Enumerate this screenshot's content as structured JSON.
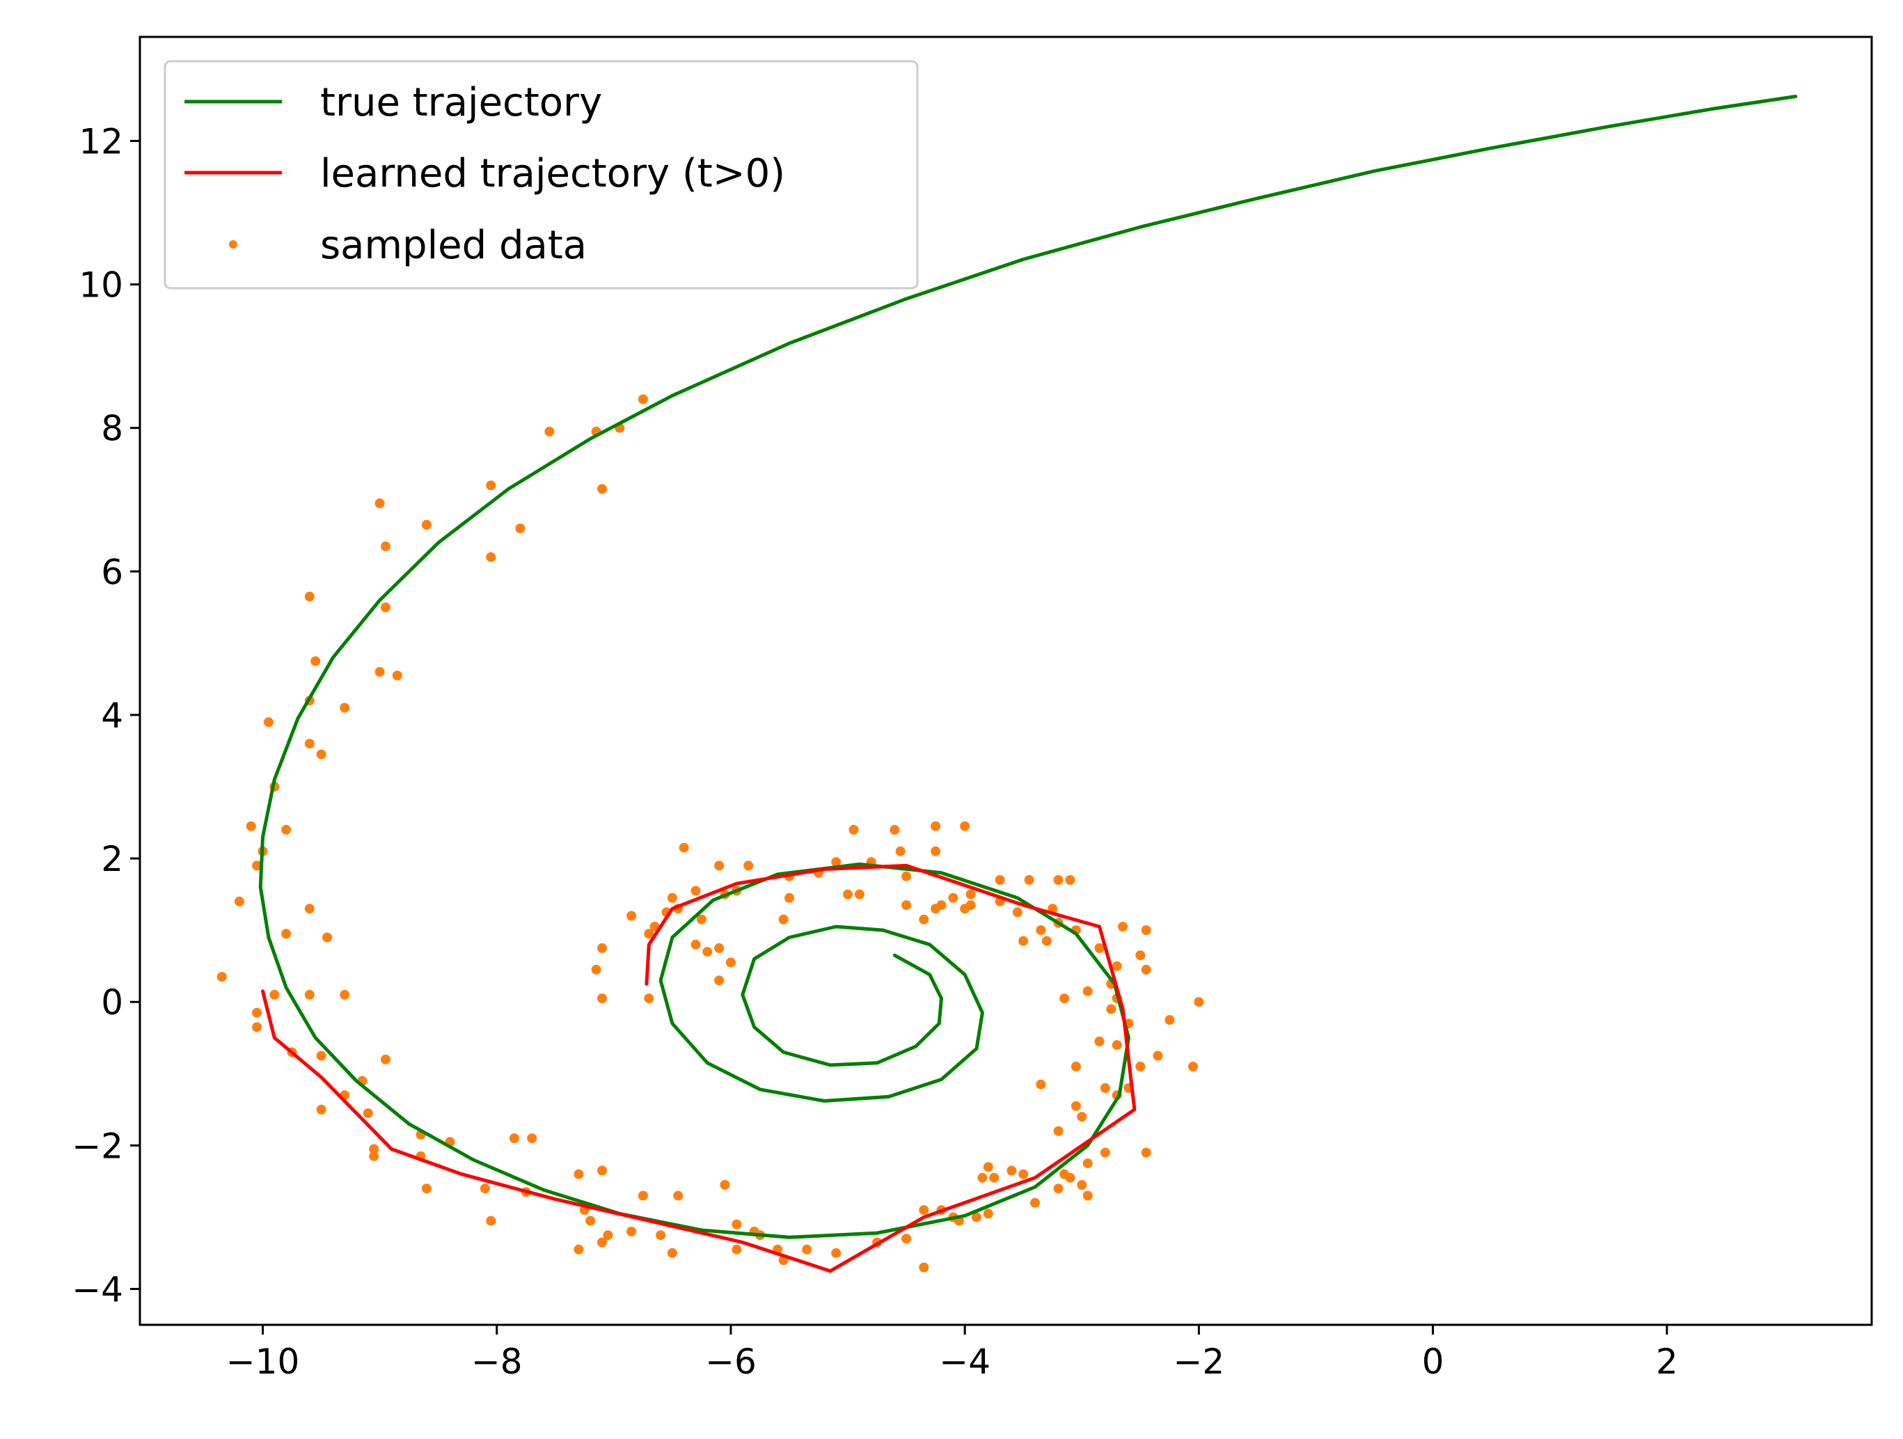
{
  "chart_data": {
    "type": "line",
    "title": "",
    "xlabel": "",
    "ylabel": "",
    "xlim": [
      -11.05,
      3.75
    ],
    "ylim": [
      -4.5,
      13.45
    ],
    "xticks": [
      -10,
      -8,
      -6,
      -4,
      -2,
      0,
      2
    ],
    "yticks": [
      -4,
      -2,
      0,
      2,
      4,
      6,
      8,
      10,
      12
    ],
    "xtick_labels": [
      "−10",
      "−8",
      "−6",
      "−4",
      "−2",
      "0",
      "2"
    ],
    "ytick_labels": [
      "−4",
      "−2",
      "0",
      "2",
      "4",
      "6",
      "8",
      "10",
      "12"
    ],
    "grid": false,
    "legend_position": "upper-left",
    "legend": [
      "true trajectory",
      "learned trajectory (t>0)",
      "sampled data"
    ],
    "series": [
      {
        "name": "true trajectory",
        "kind": "line",
        "color": "#008000",
        "points": [
          [
            3.1,
            12.62
          ],
          [
            2.4,
            12.45
          ],
          [
            1.5,
            12.2
          ],
          [
            0.5,
            11.9
          ],
          [
            -0.5,
            11.58
          ],
          [
            -1.5,
            11.2
          ],
          [
            -2.5,
            10.8
          ],
          [
            -3.5,
            10.35
          ],
          [
            -4.5,
            9.8
          ],
          [
            -5.5,
            9.18
          ],
          [
            -6.5,
            8.45
          ],
          [
            -7.2,
            7.85
          ],
          [
            -7.9,
            7.15
          ],
          [
            -8.5,
            6.4
          ],
          [
            -9.0,
            5.6
          ],
          [
            -9.4,
            4.8
          ],
          [
            -9.7,
            3.95
          ],
          [
            -9.9,
            3.1
          ],
          [
            -10.0,
            2.3
          ],
          [
            -10.02,
            1.6
          ],
          [
            -9.95,
            0.9
          ],
          [
            -9.8,
            0.2
          ],
          [
            -9.55,
            -0.5
          ],
          [
            -9.2,
            -1.1
          ],
          [
            -8.75,
            -1.7
          ],
          [
            -8.2,
            -2.2
          ],
          [
            -7.6,
            -2.62
          ],
          [
            -6.95,
            -2.95
          ],
          [
            -6.25,
            -3.18
          ],
          [
            -5.5,
            -3.28
          ],
          [
            -4.75,
            -3.22
          ],
          [
            -4.0,
            -2.98
          ],
          [
            -3.4,
            -2.58
          ],
          [
            -2.95,
            -2.0
          ],
          [
            -2.68,
            -1.3
          ],
          [
            -2.6,
            -0.5
          ],
          [
            -2.72,
            0.25
          ],
          [
            -3.05,
            0.95
          ],
          [
            -3.55,
            1.45
          ],
          [
            -4.2,
            1.8
          ],
          [
            -4.9,
            1.92
          ],
          [
            -5.6,
            1.78
          ],
          [
            -6.15,
            1.42
          ],
          [
            -6.5,
            0.9
          ],
          [
            -6.6,
            0.3
          ],
          [
            -6.5,
            -0.3
          ],
          [
            -6.2,
            -0.85
          ],
          [
            -5.75,
            -1.22
          ],
          [
            -5.2,
            -1.38
          ],
          [
            -4.65,
            -1.32
          ],
          [
            -4.2,
            -1.08
          ],
          [
            -3.9,
            -0.65
          ],
          [
            -3.85,
            -0.15
          ],
          [
            -4.0,
            0.38
          ],
          [
            -4.3,
            0.8
          ],
          [
            -4.7,
            1.0
          ],
          [
            -5.1,
            1.05
          ],
          [
            -5.5,
            0.9
          ],
          [
            -5.8,
            0.6
          ],
          [
            -5.9,
            0.1
          ],
          [
            -5.8,
            -0.35
          ],
          [
            -5.55,
            -0.7
          ],
          [
            -5.15,
            -0.88
          ],
          [
            -4.75,
            -0.85
          ],
          [
            -4.42,
            -0.62
          ],
          [
            -4.22,
            -0.3
          ],
          [
            -4.2,
            0.05
          ],
          [
            -4.3,
            0.38
          ],
          [
            -4.6,
            0.65
          ]
        ]
      },
      {
        "name": "learned trajectory (t>0)",
        "kind": "line",
        "color": "#ff0000",
        "points": [
          [
            -10.0,
            0.15
          ],
          [
            -9.9,
            -0.5
          ],
          [
            -9.5,
            -1.05
          ],
          [
            -8.9,
            -2.05
          ],
          [
            -8.3,
            -2.4
          ],
          [
            -7.5,
            -2.75
          ],
          [
            -6.7,
            -3.05
          ],
          [
            -5.9,
            -3.35
          ],
          [
            -5.15,
            -3.75
          ],
          [
            -4.35,
            -3.0
          ],
          [
            -3.4,
            -2.45
          ],
          [
            -2.55,
            -1.5
          ],
          [
            -2.65,
            -0.1
          ],
          [
            -2.85,
            1.05
          ],
          [
            -3.5,
            1.35
          ],
          [
            -4.5,
            1.9
          ],
          [
            -5.2,
            1.85
          ],
          [
            -5.95,
            1.65
          ],
          [
            -6.5,
            1.3
          ],
          [
            -6.7,
            0.8
          ],
          [
            -6.72,
            0.25
          ]
        ]
      },
      {
        "name": "sampled data",
        "kind": "scatter",
        "color": "#ff7f0e",
        "points": [
          [
            -6.75,
            8.4
          ],
          [
            -7.55,
            7.95
          ],
          [
            -7.15,
            7.95
          ],
          [
            -6.95,
            8.0
          ],
          [
            -7.1,
            7.15
          ],
          [
            -8.05,
            7.2
          ],
          [
            -9.0,
            6.95
          ],
          [
            -8.6,
            6.65
          ],
          [
            -7.8,
            6.6
          ],
          [
            -8.05,
            6.2
          ],
          [
            -8.95,
            6.35
          ],
          [
            -9.6,
            5.65
          ],
          [
            -8.95,
            5.5
          ],
          [
            -9.55,
            4.75
          ],
          [
            -9.0,
            4.6
          ],
          [
            -8.85,
            4.55
          ],
          [
            -9.6,
            4.2
          ],
          [
            -9.3,
            4.1
          ],
          [
            -9.95,
            3.9
          ],
          [
            -9.5,
            3.45
          ],
          [
            -9.6,
            3.6
          ],
          [
            -9.9,
            3.0
          ],
          [
            -10.1,
            2.45
          ],
          [
            -9.8,
            2.4
          ],
          [
            -10.05,
            1.9
          ],
          [
            -10.0,
            2.1
          ],
          [
            -10.2,
            1.4
          ],
          [
            -9.6,
            1.3
          ],
          [
            -9.8,
            0.95
          ],
          [
            -9.45,
            0.9
          ],
          [
            -10.35,
            0.35
          ],
          [
            -9.9,
            0.1
          ],
          [
            -9.6,
            0.1
          ],
          [
            -9.3,
            0.1
          ],
          [
            -10.05,
            -0.15
          ],
          [
            -10.05,
            -0.35
          ],
          [
            -9.75,
            -0.7
          ],
          [
            -9.5,
            -0.75
          ],
          [
            -8.95,
            -0.8
          ],
          [
            -9.15,
            -1.1
          ],
          [
            -9.3,
            -1.3
          ],
          [
            -9.5,
            -1.5
          ],
          [
            -9.1,
            -1.55
          ],
          [
            -9.05,
            -2.05
          ],
          [
            -9.05,
            -2.15
          ],
          [
            -8.65,
            -1.85
          ],
          [
            -8.4,
            -1.95
          ],
          [
            -8.65,
            -2.15
          ],
          [
            -7.85,
            -1.9
          ],
          [
            -7.7,
            -1.9
          ],
          [
            -8.6,
            -2.6
          ],
          [
            -8.1,
            -2.6
          ],
          [
            -7.75,
            -2.65
          ],
          [
            -8.05,
            -3.05
          ],
          [
            -7.3,
            -2.4
          ],
          [
            -7.1,
            -2.35
          ],
          [
            -6.75,
            -2.7
          ],
          [
            -6.45,
            -2.7
          ],
          [
            -6.05,
            -2.55
          ],
          [
            -7.25,
            -2.9
          ],
          [
            -7.2,
            -3.05
          ],
          [
            -7.05,
            -3.25
          ],
          [
            -6.85,
            -3.2
          ],
          [
            -6.6,
            -3.25
          ],
          [
            -7.1,
            -3.35
          ],
          [
            -7.3,
            -3.45
          ],
          [
            -6.5,
            -3.5
          ],
          [
            -5.95,
            -3.1
          ],
          [
            -5.8,
            -3.2
          ],
          [
            -5.75,
            -3.25
          ],
          [
            -5.95,
            -3.45
          ],
          [
            -5.6,
            -3.45
          ],
          [
            -5.35,
            -3.45
          ],
          [
            -5.55,
            -3.6
          ],
          [
            -5.1,
            -3.5
          ],
          [
            -4.75,
            -3.35
          ],
          [
            -4.5,
            -3.3
          ],
          [
            -4.35,
            -2.9
          ],
          [
            -4.2,
            -2.9
          ],
          [
            -4.1,
            -3.0
          ],
          [
            -4.05,
            -3.05
          ],
          [
            -3.8,
            -2.3
          ],
          [
            -3.75,
            -2.45
          ],
          [
            -3.85,
            -2.45
          ],
          [
            -3.6,
            -2.35
          ],
          [
            -3.5,
            -2.4
          ],
          [
            -3.8,
            -2.95
          ],
          [
            -3.9,
            -3.0
          ],
          [
            -3.4,
            -2.8
          ],
          [
            -4.35,
            -3.7
          ],
          [
            -3.15,
            -2.4
          ],
          [
            -3.1,
            -2.45
          ],
          [
            -3.2,
            -2.6
          ],
          [
            -3.0,
            -2.55
          ],
          [
            -2.95,
            -2.25
          ],
          [
            -2.95,
            -2.7
          ],
          [
            -2.8,
            -2.1
          ],
          [
            -2.45,
            -2.1
          ],
          [
            -3.2,
            -1.8
          ],
          [
            -3.0,
            -1.6
          ],
          [
            -3.05,
            -1.45
          ],
          [
            -2.8,
            -1.2
          ],
          [
            -2.7,
            -1.3
          ],
          [
            -2.6,
            -1.2
          ],
          [
            -2.5,
            -0.9
          ],
          [
            -2.35,
            -0.75
          ],
          [
            -2.05,
            -0.9
          ],
          [
            -3.35,
            -1.15
          ],
          [
            -3.05,
            -0.9
          ],
          [
            -2.85,
            -0.55
          ],
          [
            -2.7,
            -0.6
          ],
          [
            -2.75,
            -0.1
          ],
          [
            -2.6,
            -0.3
          ],
          [
            -2.25,
            -0.25
          ],
          [
            -2.0,
            0.0
          ],
          [
            -3.15,
            0.05
          ],
          [
            -2.7,
            0.05
          ],
          [
            -2.95,
            0.15
          ],
          [
            -2.75,
            0.25
          ],
          [
            -2.7,
            0.5
          ],
          [
            -2.45,
            0.45
          ],
          [
            -2.5,
            0.65
          ],
          [
            -2.45,
            1.0
          ],
          [
            -2.65,
            1.05
          ],
          [
            -2.85,
            0.75
          ],
          [
            -3.05,
            1.0
          ],
          [
            -3.3,
            0.85
          ],
          [
            -3.2,
            1.1
          ],
          [
            -3.35,
            1.0
          ],
          [
            -3.5,
            0.85
          ],
          [
            -3.25,
            1.3
          ],
          [
            -3.55,
            1.25
          ],
          [
            -3.7,
            1.4
          ],
          [
            -3.95,
            1.35
          ],
          [
            -3.95,
            1.5
          ],
          [
            -4.0,
            1.3
          ],
          [
            -4.2,
            1.35
          ],
          [
            -4.35,
            1.15
          ],
          [
            -4.25,
            1.3
          ],
          [
            -4.1,
            1.45
          ],
          [
            -3.7,
            1.7
          ],
          [
            -3.45,
            1.7
          ],
          [
            -3.2,
            1.7
          ],
          [
            -3.1,
            1.7
          ],
          [
            -4.0,
            2.45
          ],
          [
            -4.25,
            2.1
          ],
          [
            -4.25,
            2.45
          ],
          [
            -4.55,
            2.1
          ],
          [
            -4.6,
            2.4
          ],
          [
            -4.8,
            1.95
          ],
          [
            -4.95,
            2.4
          ],
          [
            -5.1,
            1.95
          ],
          [
            -5.0,
            1.5
          ],
          [
            -4.9,
            1.5
          ],
          [
            -4.5,
            1.75
          ],
          [
            -4.5,
            1.35
          ],
          [
            -5.25,
            1.8
          ],
          [
            -5.5,
            1.75
          ],
          [
            -5.5,
            1.45
          ],
          [
            -5.55,
            1.15
          ],
          [
            -5.85,
            1.9
          ],
          [
            -6.1,
            1.9
          ],
          [
            -6.05,
            1.5
          ],
          [
            -5.95,
            1.55
          ],
          [
            -6.25,
            1.15
          ],
          [
            -6.4,
            2.15
          ],
          [
            -6.3,
            1.55
          ],
          [
            -6.45,
            1.3
          ],
          [
            -6.5,
            1.45
          ],
          [
            -6.55,
            1.25
          ],
          [
            -6.65,
            1.05
          ],
          [
            -6.7,
            0.95
          ],
          [
            -6.3,
            0.8
          ],
          [
            -6.2,
            0.7
          ],
          [
            -6.1,
            0.75
          ],
          [
            -6.0,
            0.55
          ],
          [
            -6.1,
            0.3
          ],
          [
            -6.7,
            0.05
          ],
          [
            -7.1,
            0.05
          ],
          [
            -7.15,
            0.45
          ],
          [
            -7.1,
            0.75
          ],
          [
            -6.85,
            1.2
          ]
        ]
      }
    ]
  }
}
